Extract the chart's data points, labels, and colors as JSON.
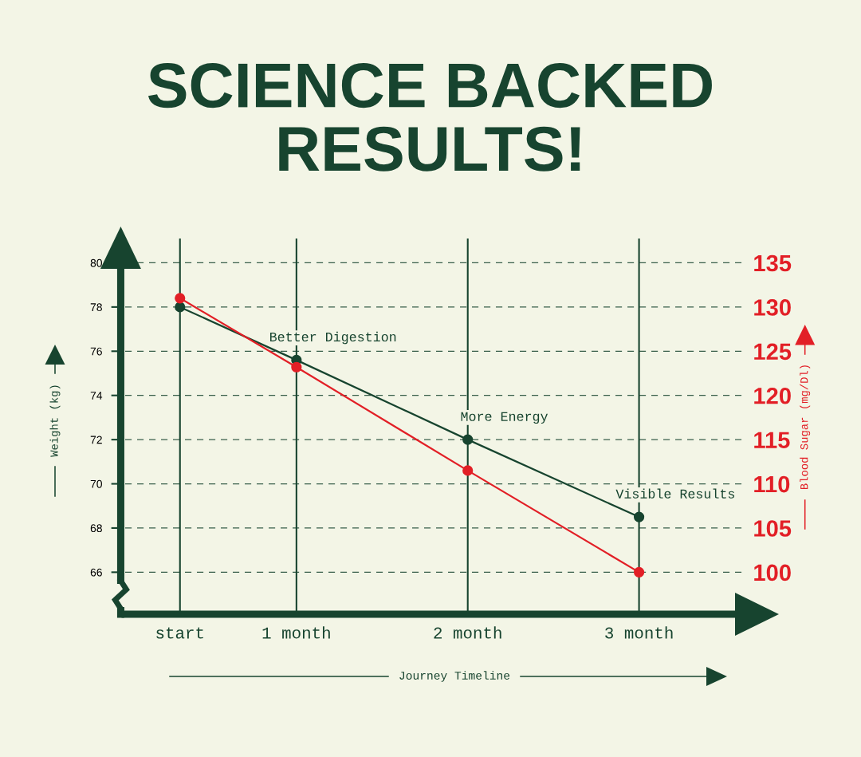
{
  "chart_data": {
    "type": "line",
    "title": "SCIENCE BACKED RESULTS!",
    "xlabel": "Journey Timeline",
    "ylabel": "Weight (kg)",
    "y2label": "Blood Sugar (mg/Dl)",
    "x": [
      0.32,
      1,
      2,
      3
    ],
    "xlim": [
      0,
      3.6
    ],
    "xticks": [
      {
        "value": 0.32,
        "label": "start"
      },
      {
        "value": 1,
        "label": "1 month"
      },
      {
        "value": 2,
        "label": "2 month"
      },
      {
        "value": 3,
        "label": "3 month"
      }
    ],
    "ylim": [
      64.1,
      81.1
    ],
    "yticks": [
      66,
      68,
      70,
      72,
      74,
      76,
      78,
      80
    ],
    "y2lim": [
      95.25,
      137.75
    ],
    "y2ticks": [
      100,
      105,
      110,
      115,
      120,
      125,
      130,
      135
    ],
    "series": [
      {
        "color": "#17442f",
        "values": [
          78,
          75.6,
          72,
          68.5
        ]
      },
      {
        "color": "#e21f26",
        "values": [
          131,
          123.2,
          111.5,
          100
        ],
        "axis": "y2"
      }
    ],
    "annotations": [
      {
        "text": "Better Digestion",
        "x": 1,
        "y": 75.6
      },
      {
        "text": "More Energy",
        "x": 2,
        "y": 72
      },
      {
        "text": "Visible Results",
        "x": 3,
        "y": 68.5
      }
    ],
    "grid": true,
    "marker": "circle",
    "line_style": "solid"
  }
}
